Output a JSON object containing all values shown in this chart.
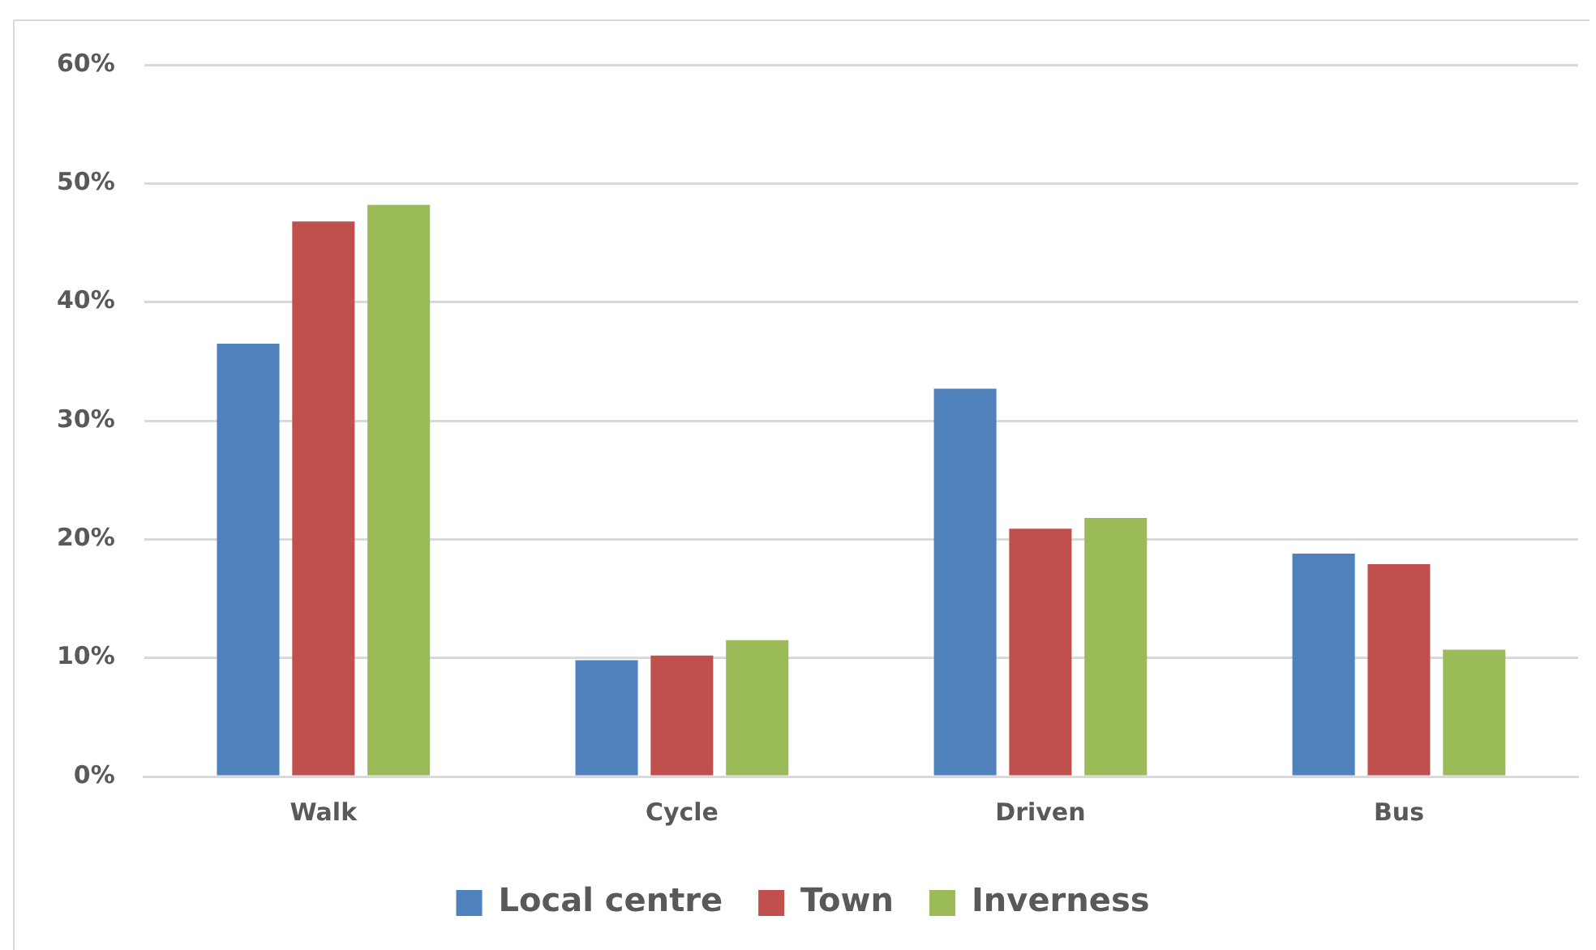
{
  "chart_data": {
    "type": "bar",
    "categories": [
      "Walk",
      "Cycle",
      "Driven",
      "Bus"
    ],
    "series": [
      {
        "name": "Local centre",
        "color": "#4f81bd",
        "values": [
          36.5,
          9.8,
          32.7,
          18.8
        ]
      },
      {
        "name": "Town",
        "color": "#c0504d",
        "values": [
          46.8,
          10.2,
          20.9,
          17.9
        ]
      },
      {
        "name": "Inverness",
        "color": "#9bbb59",
        "values": [
          48.2,
          11.5,
          21.8,
          10.7
        ]
      }
    ],
    "ylim": [
      0,
      60
    ],
    "yticks": [
      {
        "value": 0,
        "label": "0%"
      },
      {
        "value": 10,
        "label": "10%"
      },
      {
        "value": 20,
        "label": "20%"
      },
      {
        "value": 30,
        "label": "30%"
      },
      {
        "value": 40,
        "label": "40%"
      },
      {
        "value": 50,
        "label": "50%"
      },
      {
        "value": 60,
        "label": "60%"
      }
    ],
    "grid": "y",
    "legend": "bottom"
  }
}
